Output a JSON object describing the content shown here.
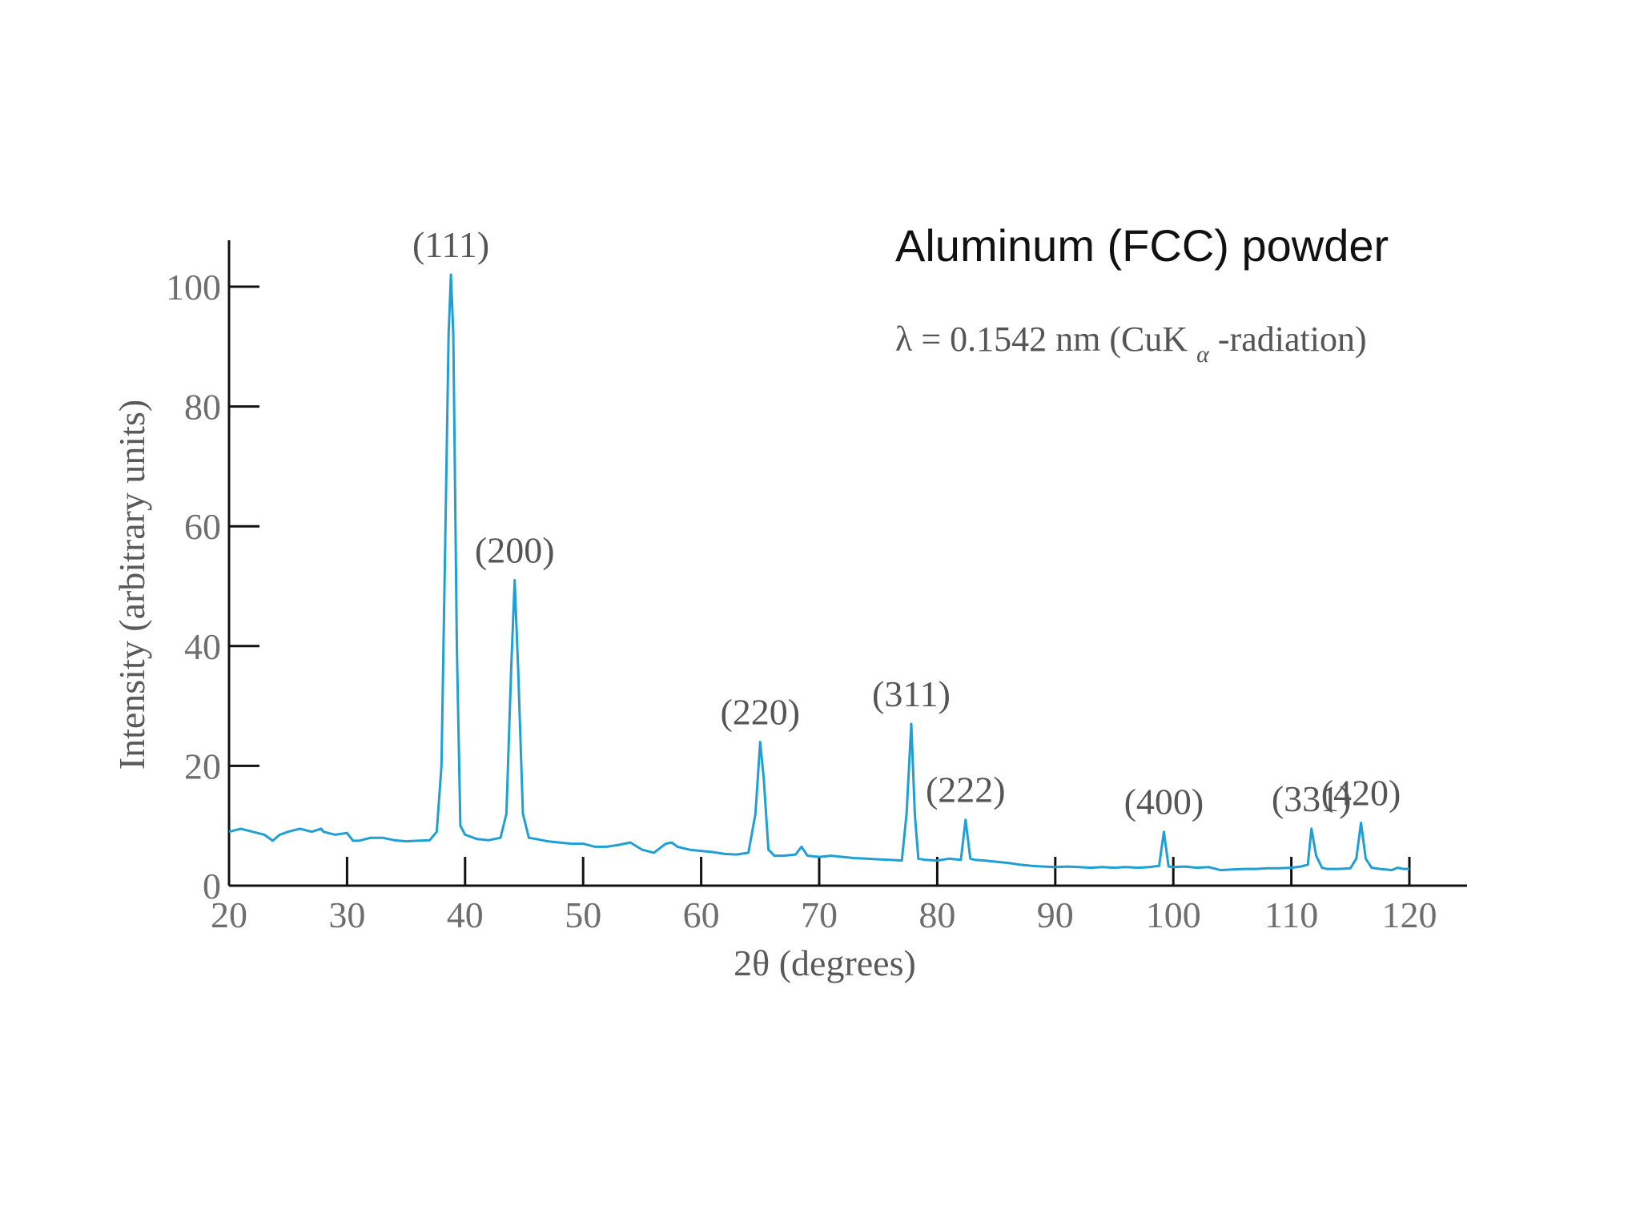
{
  "chart_data": {
    "type": "line",
    "title": "Aluminum (FCC) powder",
    "subtitle": {
      "prefix": "λ = 0.1542 nm (CuK",
      "subscript": "α",
      "suffix": "-radiation)"
    },
    "xlabel": "2θ (degrees)",
    "ylabel": "Intensity (arbitrary units)",
    "xlim": [
      20,
      120
    ],
    "ylim": [
      0,
      100
    ],
    "x_ticks": [
      20,
      30,
      40,
      50,
      60,
      70,
      80,
      90,
      100,
      110,
      120
    ],
    "y_ticks": [
      0,
      20,
      40,
      60,
      80,
      100
    ],
    "series_color": "#1f9fd4",
    "axis_color": "#111111",
    "grid": false,
    "series": [
      {
        "x": [
          20,
          21,
          22,
          23,
          23.7,
          24.3,
          25,
          26,
          27,
          27.8,
          28,
          29,
          30,
          30.5,
          31,
          32,
          33,
          34,
          35,
          36,
          37,
          37.6,
          38.0,
          38.3,
          38.6,
          38.8,
          39.0,
          39.3,
          39.6,
          40,
          41,
          42,
          43,
          43.5,
          43.9,
          44.2,
          44.5,
          44.9,
          45.4,
          46,
          47,
          48,
          49,
          50,
          51,
          52,
          53,
          54,
          55,
          56,
          57,
          57.5,
          58,
          59,
          60,
          61,
          62,
          63,
          64,
          64.6,
          65.0,
          65.3,
          65.7,
          66.2,
          67,
          68,
          68.5,
          69,
          70,
          71,
          72,
          73,
          74,
          75,
          76,
          77,
          77.4,
          77.8,
          78.1,
          78.4,
          79,
          80,
          81,
          82,
          82.4,
          82.8,
          83.2,
          84,
          85,
          86,
          87,
          88,
          89,
          90,
          91,
          92,
          93,
          94,
          95,
          96,
          97,
          98,
          98.8,
          99.2,
          99.6,
          100,
          101,
          102,
          103,
          104,
          105,
          106,
          107,
          108,
          109,
          110,
          110.8,
          111.4,
          111.7,
          112.1,
          112.6,
          113,
          114,
          115,
          115.5,
          115.9,
          116.3,
          116.8,
          117.5,
          118,
          118.5,
          119,
          119.5,
          120
        ],
        "values": [
          9,
          9.5,
          9,
          8.5,
          7.5,
          8.5,
          9,
          9.5,
          9,
          9.5,
          9,
          8.5,
          8.8,
          7.5,
          7.5,
          8,
          8,
          7.6,
          7.4,
          7.5,
          7.6,
          9,
          20,
          55,
          92,
          102,
          92,
          40,
          10,
          8.5,
          7.8,
          7.6,
          8,
          12,
          36,
          51,
          36,
          12,
          8,
          7.8,
          7.4,
          7.2,
          7,
          7,
          6.5,
          6.5,
          6.8,
          7.2,
          6,
          5.5,
          7,
          7.2,
          6.5,
          6,
          5.8,
          5.6,
          5.3,
          5.2,
          5.5,
          12,
          24,
          18,
          6,
          5,
          5,
          5.2,
          6.5,
          5,
          4.8,
          5,
          4.8,
          4.6,
          4.5,
          4.4,
          4.3,
          4.2,
          12,
          27,
          12,
          4.5,
          4.3,
          4.2,
          4.5,
          4.3,
          11,
          4.5,
          4.3,
          4.2,
          4,
          3.8,
          3.5,
          3.3,
          3.2,
          3.1,
          3.2,
          3.1,
          3,
          3.1,
          3,
          3.1,
          3,
          3.1,
          3.3,
          9,
          3.2,
          3.1,
          3.2,
          3,
          3.1,
          2.6,
          2.7,
          2.8,
          2.8,
          2.9,
          2.9,
          3,
          3.2,
          3.5,
          9.5,
          5,
          3,
          2.8,
          2.8,
          2.9,
          4.5,
          10.5,
          4.5,
          3,
          2.8,
          2.7,
          2.6,
          3,
          2.8,
          2.8
        ]
      }
    ],
    "annotations": [
      {
        "text": "(111)",
        "x": 38.8,
        "y": 102
      },
      {
        "text": "(200)",
        "x": 44.2,
        "y": 51
      },
      {
        "text": "(220)",
        "x": 65.0,
        "y": 24
      },
      {
        "text": "(311)",
        "x": 77.8,
        "y": 27
      },
      {
        "text": "(222)",
        "x": 82.4,
        "y": 11
      },
      {
        "text": "(400)",
        "x": 99.2,
        "y": 9
      },
      {
        "text": "(331)",
        "x": 111.7,
        "y": 9.5
      },
      {
        "text": "(420)",
        "x": 115.9,
        "y": 10.5
      }
    ]
  }
}
